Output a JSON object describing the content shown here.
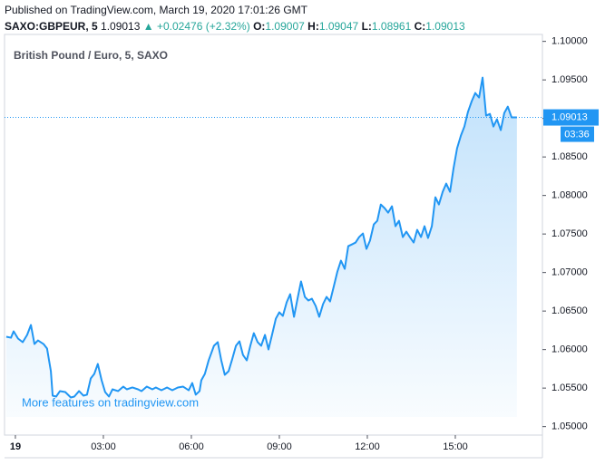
{
  "header": {
    "published": "Published on TradingView.com, March 19, 2020 17:01:26 GMT",
    "symbol": "SAXO:GBPEUR, 5",
    "last": "1.09013",
    "change": "▲ +0.02476 (+2.32%)",
    "ohlc": [
      {
        "label": "O:",
        "value": "1.09007"
      },
      {
        "label": "H:",
        "value": "1.09047"
      },
      {
        "label": "L:",
        "value": "1.08961"
      },
      {
        "label": "C:",
        "value": "1.09013"
      }
    ]
  },
  "chart_data": {
    "type": "line",
    "title": "British Pound / Euro, 5, SAXO",
    "watermark": "More features on tradingview.com",
    "color": "#2196f3",
    "x": [
      -0.31,
      -0.15,
      -0.06,
      0.09,
      0.25,
      0.4,
      0.53,
      0.65,
      0.77,
      0.96,
      1.08,
      1.21,
      1.27,
      1.39,
      1.52,
      1.7,
      1.89,
      2.01,
      2.17,
      2.32,
      2.44,
      2.57,
      2.69,
      2.81,
      2.94,
      3.06,
      3.19,
      3.31,
      3.5,
      3.68,
      3.8,
      3.99,
      4.18,
      4.3,
      4.48,
      4.67,
      4.79,
      4.98,
      5.17,
      5.35,
      5.54,
      5.72,
      5.91,
      6.03,
      6.15,
      6.28,
      6.34,
      6.46,
      6.59,
      6.77,
      6.9,
      7.02,
      7.14,
      7.27,
      7.39,
      7.52,
      7.64,
      7.76,
      7.89,
      8.01,
      8.13,
      8.26,
      8.38,
      8.51,
      8.63,
      8.75,
      8.88,
      9.0,
      9.12,
      9.25,
      9.37,
      9.5,
      9.62,
      9.74,
      9.87,
      9.99,
      10.11,
      10.24,
      10.36,
      10.49,
      10.61,
      10.73,
      10.86,
      10.98,
      11.1,
      11.23,
      11.35,
      11.48,
      11.6,
      11.72,
      11.85,
      11.97,
      12.09,
      12.22,
      12.34,
      12.46,
      12.59,
      12.71,
      12.84,
      12.96,
      13.08,
      13.21,
      13.33,
      13.45,
      13.58,
      13.7,
      13.83,
      13.95,
      14.07,
      14.2,
      14.32,
      14.44,
      14.57,
      14.69,
      14.82,
      14.94,
      15.06,
      15.19,
      15.31,
      15.43,
      15.56,
      15.68,
      15.81,
      15.93,
      16.05,
      16.18,
      16.3,
      16.42,
      16.55,
      16.67,
      16.79,
      16.92,
      17.1
    ],
    "values": [
      1.06166,
      1.06154,
      1.06237,
      1.06143,
      1.06096,
      1.0619,
      1.06319,
      1.06072,
      1.06119,
      1.06072,
      1.06013,
      1.05719,
      1.05402,
      1.0539,
      1.05461,
      1.05449,
      1.05378,
      1.0539,
      1.05461,
      1.05402,
      1.05414,
      1.05625,
      1.05684,
      1.05813,
      1.05602,
      1.05449,
      1.0539,
      1.05484,
      1.05461,
      1.05519,
      1.05484,
      1.05508,
      1.05484,
      1.05461,
      1.05519,
      1.05484,
      1.05508,
      1.05472,
      1.05508,
      1.05472,
      1.05508,
      1.05519,
      1.05472,
      1.05566,
      1.05414,
      1.05461,
      1.05602,
      1.05684,
      1.0586,
      1.06049,
      1.06096,
      1.0586,
      1.05672,
      1.05719,
      1.05872,
      1.06049,
      1.06107,
      1.05931,
      1.0586,
      1.06049,
      1.06213,
      1.06096,
      1.06049,
      1.0619,
      1.06002,
      1.0619,
      1.06401,
      1.06484,
      1.06437,
      1.06613,
      1.06719,
      1.06425,
      1.0666,
      1.06884,
      1.06684,
      1.06637,
      1.0666,
      1.06566,
      1.06425,
      1.0659,
      1.06684,
      1.06625,
      1.06825,
      1.07013,
      1.07154,
      1.07048,
      1.07342,
      1.07366,
      1.07389,
      1.0746,
      1.07507,
      1.07307,
      1.07413,
      1.07624,
      1.07672,
      1.07883,
      1.07836,
      1.07777,
      1.0786,
      1.07601,
      1.07672,
      1.0746,
      1.0753,
      1.0746,
      1.07389,
      1.07554,
      1.0746,
      1.07601,
      1.07448,
      1.07601,
      1.07977,
      1.07883,
      1.08048,
      1.08154,
      1.08048,
      1.08354,
      1.08612,
      1.08777,
      1.08895,
      1.09083,
      1.09224,
      1.0933,
      1.09271,
      1.0953,
      1.09036,
      1.09059,
      1.08895,
      1.08989,
      1.08848,
      1.09071,
      1.09153,
      1.09013,
      1.09013
    ],
    "xlim": [
      -0.37,
      17.97
    ],
    "xticks": [
      {
        "value": 0,
        "label": "19"
      },
      {
        "value": 3,
        "label": "03:00"
      },
      {
        "value": 6,
        "label": "06:00"
      },
      {
        "value": 9,
        "label": "09:00"
      },
      {
        "value": 12,
        "label": "12:00"
      },
      {
        "value": 15,
        "label": "15:00"
      }
    ],
    "ylim": [
      1.0489,
      1.1009
    ],
    "yticks": [
      {
        "value": 1.05,
        "label": "1.05000"
      },
      {
        "value": 1.055,
        "label": "1.05500"
      },
      {
        "value": 1.06,
        "label": "1.06000"
      },
      {
        "value": 1.065,
        "label": "1.06500"
      },
      {
        "value": 1.07,
        "label": "1.07000"
      },
      {
        "value": 1.075,
        "label": "1.07500"
      },
      {
        "value": 1.08,
        "label": "1.08000"
      },
      {
        "value": 1.085,
        "label": "1.08500"
      },
      {
        "value": 1.09,
        "label": "1.09000"
      },
      {
        "value": 1.095,
        "label": "1.09500"
      },
      {
        "value": 1.1,
        "label": "1.10000"
      }
    ],
    "price_line": 1.09013,
    "countdown": "03:36",
    "grid": false
  }
}
